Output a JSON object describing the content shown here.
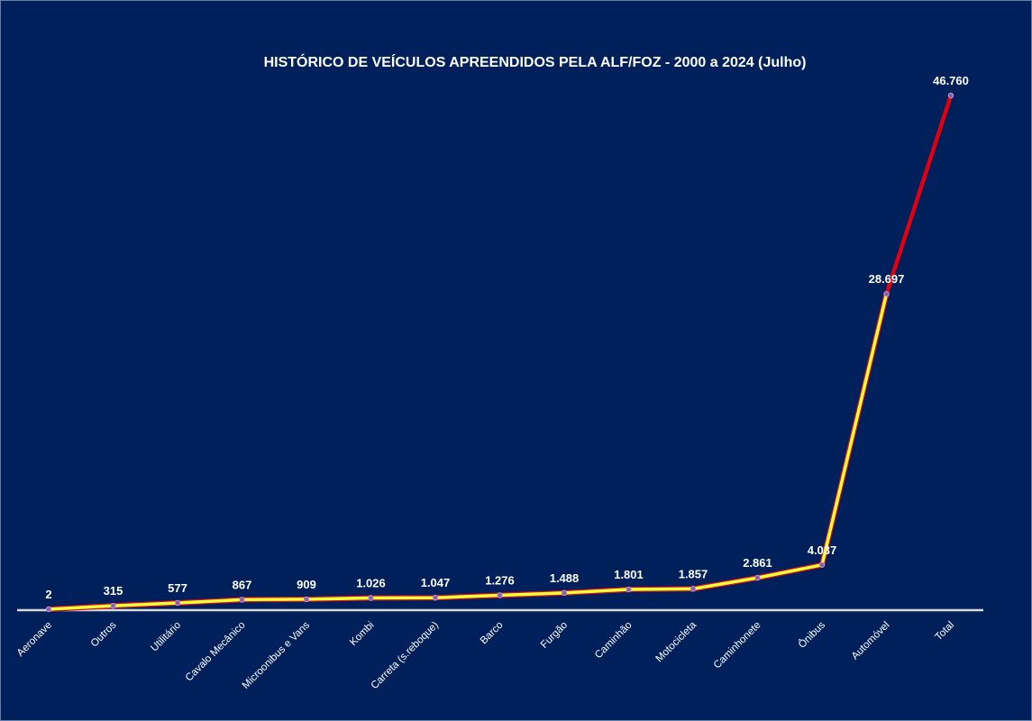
{
  "chart_data": {
    "type": "line",
    "title": "HISTÓRICO DE VEÍCULOS APREENDIDOS PELA ALF/FOZ  - 2000 a 2024 (Julho)",
    "categories": [
      "Aeronave",
      "Outros",
      "Utilitário",
      "Cavalo Mecânico",
      "Microonibus e Vans",
      "Kombi",
      "Carreta (s.reboque)",
      "Barco",
      "Furgão",
      "Caminhão",
      "Motocicleta",
      "Caminhonete",
      "Ônibus",
      "Automóvel",
      "Total"
    ],
    "values": [
      2,
      315,
      577,
      867,
      909,
      1026,
      1047,
      1276,
      1488,
      1801,
      1857,
      2861,
      4037,
      28697,
      46760
    ],
    "labels": [
      "2",
      "315",
      "577",
      "867",
      "909",
      "1.026",
      "1.047",
      "1.276",
      "1.488",
      "1.801",
      "1.857",
      "2.861",
      "4.037",
      "28.697",
      "46.760"
    ],
    "ylim": [
      0,
      48000
    ],
    "grid": false,
    "colors": {
      "background": "#00205b",
      "line_main": "#ffff33",
      "line_total": "#e0000f",
      "line_outline": "#c8102e",
      "axis": "#d9d9d9",
      "marker": "#8b5ea8"
    }
  }
}
